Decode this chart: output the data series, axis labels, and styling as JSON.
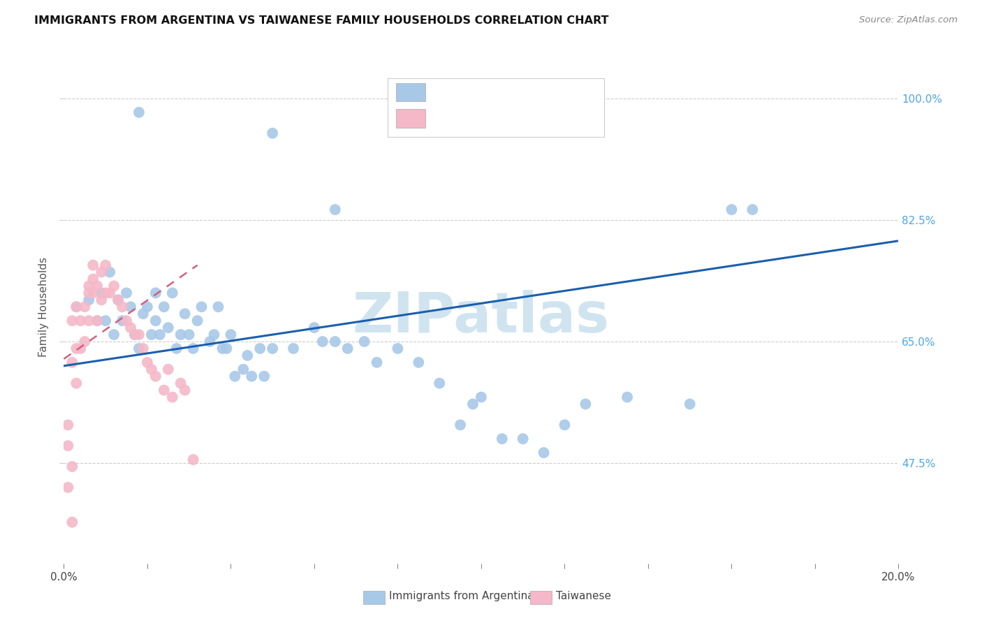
{
  "title": "IMMIGRANTS FROM ARGENTINA VS TAIWANESE FAMILY HOUSEHOLDS CORRELATION CHART",
  "source": "Source: ZipAtlas.com",
  "ylabel": "Family Households",
  "argentina_color": "#a8c8e8",
  "taiwanese_color": "#f4b8c8",
  "trendline_argentina_color": "#1a5fad",
  "trendline_taiwanese_color": "#d06080",
  "watermark_color": "#d0e4f0",
  "ytick_values": [
    0.475,
    0.65,
    0.825,
    1.0
  ],
  "ytick_labels": [
    "47.5%",
    "65.0%",
    "82.5%",
    "100.0%"
  ],
  "xlim": [
    0.0,
    0.2
  ],
  "ylim": [
    0.33,
    1.07
  ],
  "arg_trendline": [
    0.0,
    0.2,
    0.615,
    0.795
  ],
  "tai_trendline": [
    0.0,
    0.032,
    0.625,
    0.76
  ],
  "arg_x": [
    0.003,
    0.006,
    0.008,
    0.009,
    0.01,
    0.011,
    0.012,
    0.013,
    0.014,
    0.015,
    0.016,
    0.017,
    0.018,
    0.019,
    0.02,
    0.021,
    0.022,
    0.022,
    0.023,
    0.024,
    0.025,
    0.026,
    0.027,
    0.028,
    0.029,
    0.03,
    0.031,
    0.032,
    0.033,
    0.035,
    0.036,
    0.037,
    0.038,
    0.039,
    0.04,
    0.041,
    0.043,
    0.044,
    0.045,
    0.047,
    0.048,
    0.05,
    0.055,
    0.06,
    0.062,
    0.065,
    0.068,
    0.072,
    0.075,
    0.08,
    0.085,
    0.09,
    0.095,
    0.098,
    0.1,
    0.105,
    0.11,
    0.115,
    0.12,
    0.125,
    0.135,
    0.15,
    0.165,
    0.018,
    0.05,
    0.065,
    0.16
  ],
  "arg_y": [
    0.7,
    0.71,
    0.68,
    0.72,
    0.68,
    0.75,
    0.66,
    0.71,
    0.68,
    0.72,
    0.7,
    0.66,
    0.64,
    0.69,
    0.7,
    0.66,
    0.68,
    0.72,
    0.66,
    0.7,
    0.67,
    0.72,
    0.64,
    0.66,
    0.69,
    0.66,
    0.64,
    0.68,
    0.7,
    0.65,
    0.66,
    0.7,
    0.64,
    0.64,
    0.66,
    0.6,
    0.61,
    0.63,
    0.6,
    0.64,
    0.6,
    0.64,
    0.64,
    0.67,
    0.65,
    0.65,
    0.64,
    0.65,
    0.62,
    0.64,
    0.62,
    0.59,
    0.53,
    0.56,
    0.57,
    0.51,
    0.51,
    0.49,
    0.53,
    0.56,
    0.57,
    0.56,
    0.84,
    0.98,
    0.95,
    0.84,
    0.84
  ],
  "tai_x": [
    0.001,
    0.001,
    0.001,
    0.002,
    0.002,
    0.002,
    0.003,
    0.003,
    0.003,
    0.004,
    0.004,
    0.005,
    0.005,
    0.006,
    0.006,
    0.006,
    0.007,
    0.007,
    0.007,
    0.008,
    0.008,
    0.009,
    0.009,
    0.01,
    0.01,
    0.011,
    0.012,
    0.013,
    0.014,
    0.015,
    0.016,
    0.017,
    0.018,
    0.019,
    0.02,
    0.021,
    0.022,
    0.024,
    0.025,
    0.026,
    0.028,
    0.029,
    0.031,
    0.002
  ],
  "tai_y": [
    0.44,
    0.5,
    0.53,
    0.47,
    0.62,
    0.68,
    0.59,
    0.64,
    0.7,
    0.64,
    0.68,
    0.65,
    0.7,
    0.72,
    0.68,
    0.73,
    0.74,
    0.76,
    0.72,
    0.73,
    0.68,
    0.75,
    0.71,
    0.76,
    0.72,
    0.72,
    0.73,
    0.71,
    0.7,
    0.68,
    0.67,
    0.66,
    0.66,
    0.64,
    0.62,
    0.61,
    0.6,
    0.58,
    0.61,
    0.57,
    0.59,
    0.58,
    0.48,
    0.39
  ]
}
